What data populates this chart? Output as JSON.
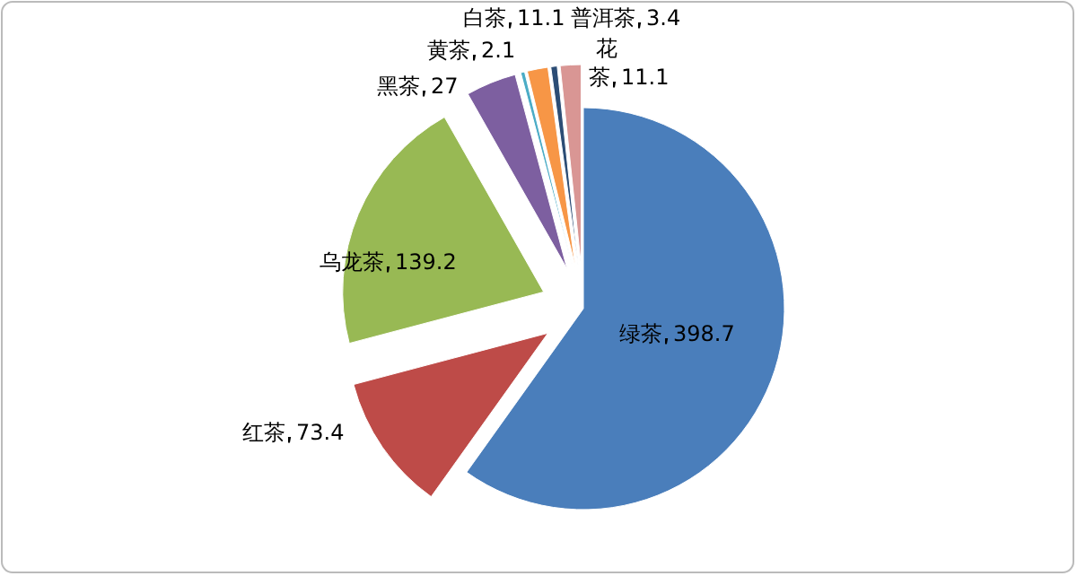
{
  "chart_data": {
    "type": "pie",
    "categories": [
      "绿茶",
      "红茶",
      "乌龙茶",
      "黑茶",
      "黄茶",
      "白茶",
      "普洱茶",
      "花茶"
    ],
    "values": [
      398.7,
      73.4,
      139.2,
      27,
      2.1,
      11.1,
      3.4,
      11.1
    ],
    "colors": [
      "#4a7ebb",
      "#be4b48",
      "#98b954",
      "#7d5fa0",
      "#4bacc6",
      "#f79646",
      "#2c4d75",
      "#d99694"
    ],
    "data_labels": true
  }
}
